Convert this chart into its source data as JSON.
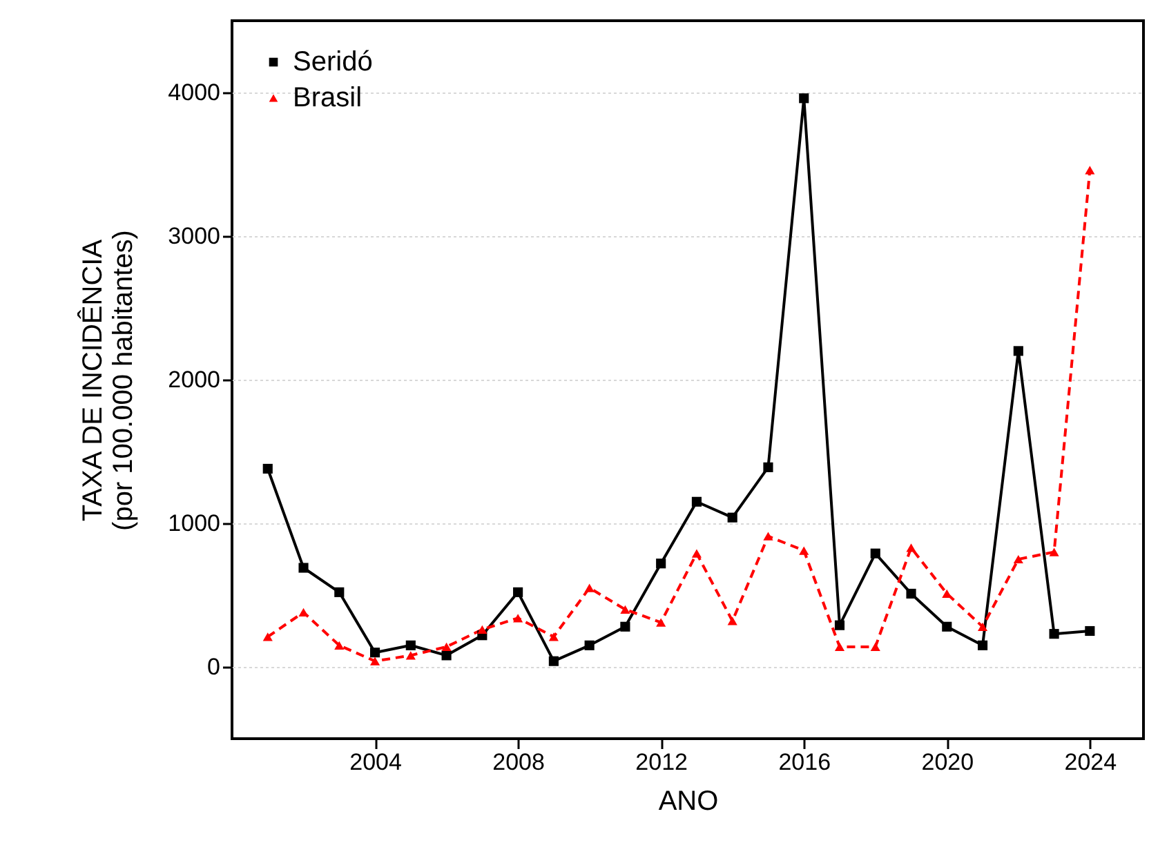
{
  "chart_data": {
    "type": "line",
    "xlabel": "ANO",
    "ylabel": "TAXA DE INCIDÊNCIA\n(por 100.000 habitantes)",
    "x": [
      2001,
      2002,
      2003,
      2004,
      2005,
      2006,
      2007,
      2008,
      2009,
      2010,
      2011,
      2012,
      2013,
      2014,
      2015,
      2016,
      2017,
      2018,
      2019,
      2020,
      2021,
      2022,
      2023,
      2024
    ],
    "series": [
      {
        "name": "Seridó",
        "color": "#000000",
        "marker": "square",
        "line_style": "solid",
        "values": [
          1380,
          690,
          520,
          100,
          150,
          80,
          220,
          520,
          40,
          150,
          280,
          720,
          1150,
          1040,
          1390,
          3960,
          290,
          790,
          510,
          280,
          150,
          2200,
          230,
          250
        ]
      },
      {
        "name": "Brasil",
        "color": "#ff0000",
        "marker": "triangle",
        "line_style": "dashed",
        "values": [
          210,
          380,
          150,
          40,
          80,
          140,
          260,
          340,
          210,
          550,
          400,
          310,
          790,
          320,
          910,
          810,
          140,
          140,
          830,
          510,
          280,
          750,
          800,
          3460
        ]
      }
    ],
    "xlim": [
      2000,
      2025.5
    ],
    "xticks": [
      2004,
      2008,
      2012,
      2016,
      2020,
      2024
    ],
    "ylim": [
      -500,
      4500
    ],
    "yticks": [
      0,
      1000,
      2000,
      3000,
      4000
    ],
    "grid": "y",
    "legend": "top left"
  }
}
